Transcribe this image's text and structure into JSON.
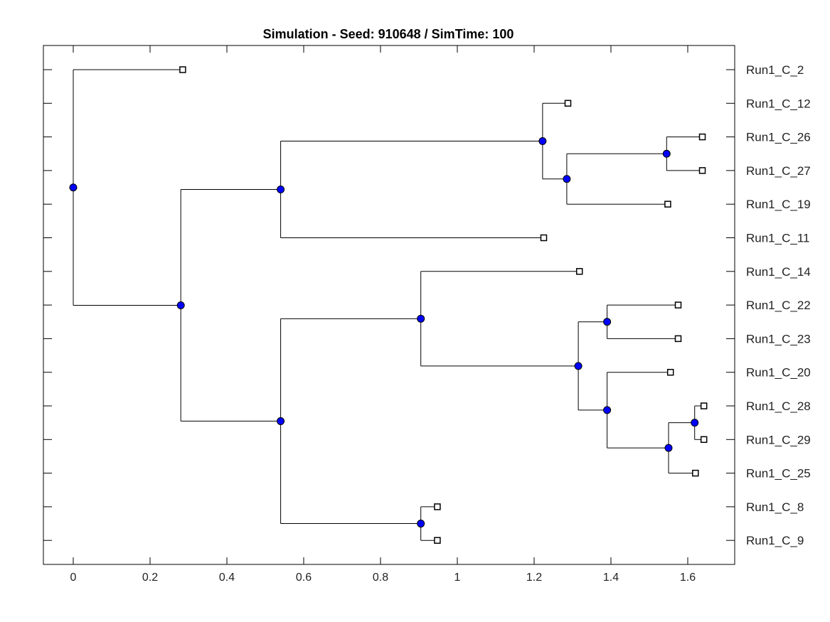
{
  "chart_data": {
    "type": "dendrogram",
    "title": "Simulation - Seed: 910648 / SimTime: 100",
    "xlabel": "",
    "ylabel": "",
    "xlim": [
      -0.08,
      1.72
    ],
    "xticks": [
      0,
      0.2,
      0.4,
      0.6,
      0.8,
      1,
      1.2,
      1.4,
      1.6
    ],
    "xtick_labels": [
      "0",
      "0.2",
      "0.4",
      "0.6",
      "0.8",
      "1",
      "1.2",
      "1.4",
      "1.6"
    ],
    "grid": false,
    "leaf_order": [
      "Run1_C_2",
      "Run1_C_12",
      "Run1_C_26",
      "Run1_C_27",
      "Run1_C_19",
      "Run1_C_11",
      "Run1_C_14",
      "Run1_C_22",
      "Run1_C_23",
      "Run1_C_20",
      "Run1_C_28",
      "Run1_C_29",
      "Run1_C_25",
      "Run1_C_8",
      "Run1_C_9"
    ],
    "leaves": [
      {
        "id": "Run1_C_2",
        "x": 0.285
      },
      {
        "id": "Run1_C_12",
        "x": 1.288
      },
      {
        "id": "Run1_C_26",
        "x": 1.638
      },
      {
        "id": "Run1_C_27",
        "x": 1.638
      },
      {
        "id": "Run1_C_19",
        "x": 1.548
      },
      {
        "id": "Run1_C_11",
        "x": 1.225
      },
      {
        "id": "Run1_C_14",
        "x": 1.318
      },
      {
        "id": "Run1_C_22",
        "x": 1.575
      },
      {
        "id": "Run1_C_23",
        "x": 1.575
      },
      {
        "id": "Run1_C_20",
        "x": 1.555
      },
      {
        "id": "Run1_C_28",
        "x": 1.642
      },
      {
        "id": "Run1_C_29",
        "x": 1.642
      },
      {
        "id": "Run1_C_25",
        "x": 1.62
      },
      {
        "id": "Run1_C_8",
        "x": 0.948
      },
      {
        "id": "Run1_C_9",
        "x": 0.948
      }
    ],
    "nodes": [
      {
        "id": "n_root",
        "x": 0,
        "children": [
          "Run1_C_2",
          "n_a"
        ]
      },
      {
        "id": "n_a",
        "x": 0.28,
        "children": [
          "n_b",
          "n_c"
        ]
      },
      {
        "id": "n_b",
        "x": 0.54,
        "children": [
          "n_d",
          "Run1_C_11"
        ]
      },
      {
        "id": "n_d",
        "x": 1.222,
        "children": [
          "Run1_C_12",
          "n_e"
        ]
      },
      {
        "id": "n_e",
        "x": 1.285,
        "children": [
          "n_f",
          "Run1_C_19"
        ]
      },
      {
        "id": "n_f",
        "x": 1.545,
        "children": [
          "Run1_C_26",
          "Run1_C_27"
        ]
      },
      {
        "id": "n_c",
        "x": 0.54,
        "children": [
          "n_g",
          "n_h"
        ]
      },
      {
        "id": "n_g",
        "x": 0.905,
        "children": [
          "Run1_C_14",
          "n_i"
        ]
      },
      {
        "id": "n_i",
        "x": 1.315,
        "children": [
          "n_j",
          "n_k"
        ]
      },
      {
        "id": "n_j",
        "x": 1.39,
        "children": [
          "Run1_C_22",
          "Run1_C_23"
        ]
      },
      {
        "id": "n_k",
        "x": 1.39,
        "children": [
          "Run1_C_20",
          "n_l"
        ]
      },
      {
        "id": "n_l",
        "x": 1.55,
        "children": [
          "n_m",
          "Run1_C_25"
        ]
      },
      {
        "id": "n_m",
        "x": 1.618,
        "children": [
          "Run1_C_28",
          "Run1_C_29"
        ]
      },
      {
        "id": "n_h",
        "x": 0.905,
        "children": [
          "Run1_C_8",
          "Run1_C_9"
        ]
      }
    ],
    "node_color": "#0000ff",
    "line_color": "#000000"
  }
}
